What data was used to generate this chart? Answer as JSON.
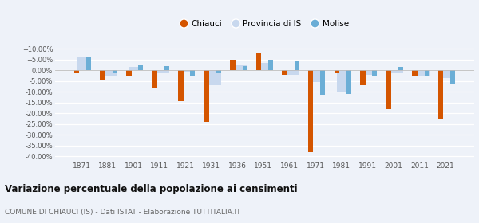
{
  "years": [
    1871,
    1881,
    1901,
    1911,
    1921,
    1931,
    1936,
    1951,
    1961,
    1971,
    1981,
    1991,
    2001,
    2011,
    2021
  ],
  "chiauci": [
    -1.5,
    -4.5,
    -3.0,
    -8.0,
    -14.5,
    -24.0,
    5.0,
    8.0,
    -2.0,
    -38.0,
    -1.5,
    -7.0,
    -18.0,
    -2.5,
    -23.0
  ],
  "provincia_is": [
    6.0,
    -2.5,
    1.5,
    -1.5,
    -1.0,
    -7.0,
    2.5,
    3.5,
    -2.0,
    -5.5,
    -10.0,
    -2.0,
    -1.5,
    -2.5,
    -3.5
  ],
  "molise": [
    6.5,
    -1.5,
    2.5,
    2.0,
    -3.0,
    -1.5,
    2.0,
    5.0,
    4.5,
    -11.5,
    -11.0,
    -2.5,
    1.5,
    -2.5,
    -6.5
  ],
  "chiauci_color": "#d45500",
  "provincia_color": "#c8d8ee",
  "molise_color": "#6baed6",
  "title": "Variazione percentuale della popolazione ai censimenti",
  "subtitle": "COMUNE DI CHIAUCI (IS) - Dati ISTAT - Elaborazione TUTTITALIA.IT",
  "legend_labels": [
    "Chiauci",
    "Provincia di IS",
    "Molise"
  ],
  "yticks": [
    10.0,
    5.0,
    0.0,
    -5.0,
    -10.0,
    -15.0,
    -20.0,
    -25.0,
    -30.0,
    -35.0,
    -40.0
  ],
  "ylim": [
    -42,
    12
  ],
  "background_color": "#eef2f9",
  "grid_color": "#ffffff"
}
